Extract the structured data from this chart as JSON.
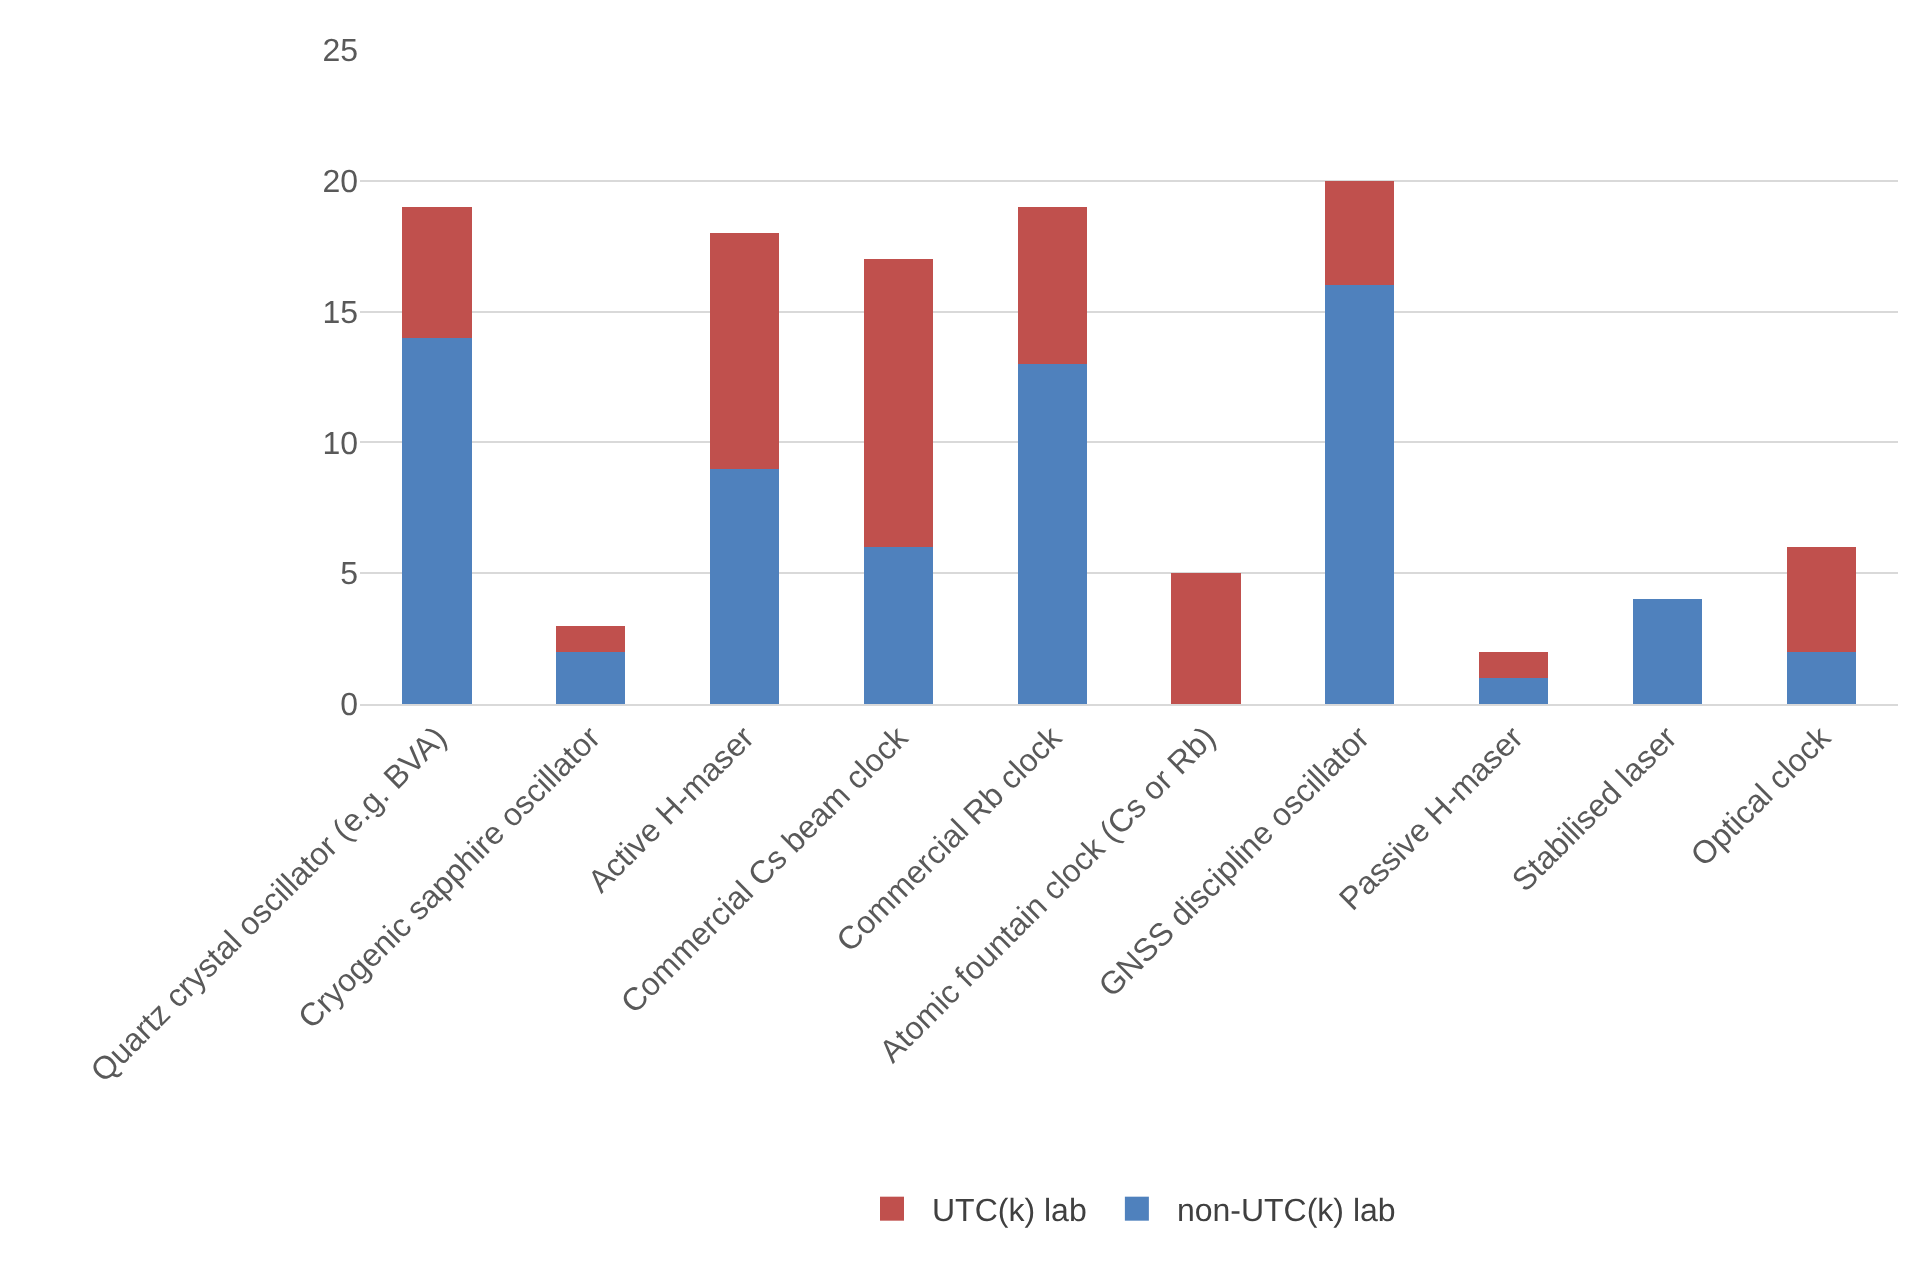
{
  "chart_data": {
    "type": "bar",
    "stacked": true,
    "categories": [
      "Quartz crystal oscillator (e.g. BVA)",
      "Cryogenic sapphire oscillator",
      "Active H-maser",
      "Commercial Cs beam clock",
      "Commercial Rb clock",
      "Atomic fountain clock (Cs or Rb)",
      "GNSS discipline oscillator",
      "Passive H-maser",
      "Stabilised laser",
      "Optical clock"
    ],
    "series": [
      {
        "name": "non-UTC(k) lab",
        "color": "#4f81bd",
        "values": [
          14,
          2,
          9,
          6,
          13,
          0,
          16,
          1,
          4,
          2
        ]
      },
      {
        "name": "UTC(k) lab",
        "color": "#c0504d",
        "values": [
          5,
          1,
          9,
          11,
          6,
          5,
          4,
          1,
          0,
          4
        ]
      }
    ],
    "ylim": [
      0,
      25
    ],
    "yticks": [
      0,
      5,
      10,
      15,
      20,
      25
    ],
    "grid": "y",
    "legend": "bottom"
  }
}
